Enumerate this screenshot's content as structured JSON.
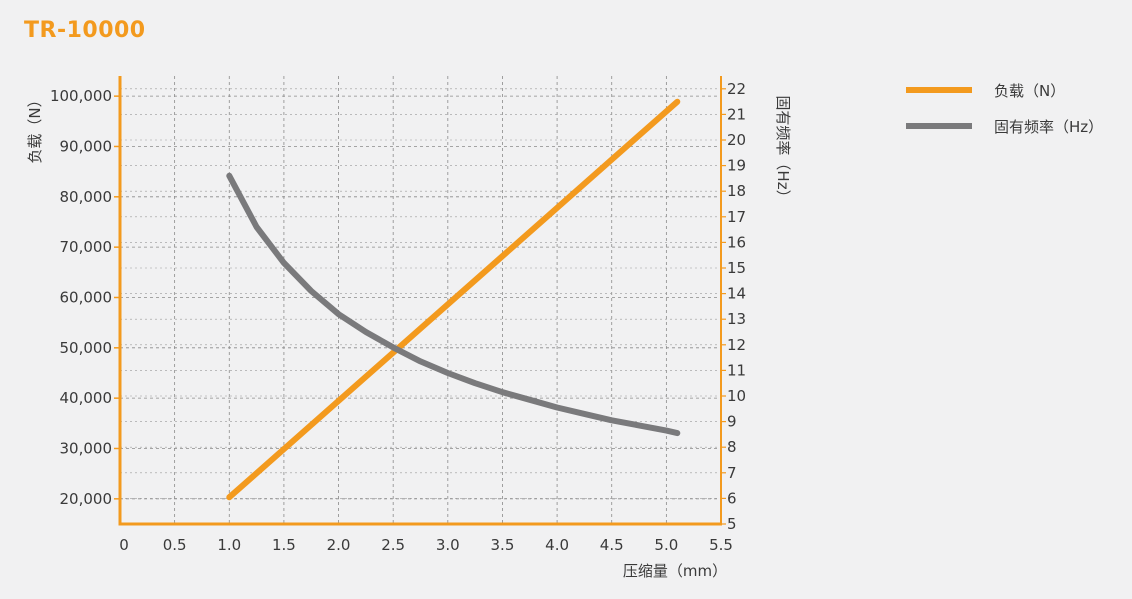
{
  "chart_data": {
    "type": "line",
    "title": "TR-10000",
    "xlabel": "压缩量（mm）",
    "ylabel_left": "负载（N）",
    "ylabel_right": "固有频率（Hz）",
    "xlim": [
      0,
      5.5
    ],
    "ylim_left": [
      15000,
      104000
    ],
    "ylim_right": [
      5,
      22.5
    ],
    "x_ticks": [
      "0",
      "0.5",
      "1.0",
      "1.5",
      "2.0",
      "2.5",
      "3.0",
      "3.5",
      "4.0",
      "4.5",
      "5.0",
      "5.5"
    ],
    "y_left_ticks": [
      "20,000",
      "30,000",
      "40,000",
      "50,000",
      "60,000",
      "70,000",
      "80,000",
      "90,000",
      "100,000"
    ],
    "y_right_ticks": [
      "5",
      "6",
      "7",
      "8",
      "9",
      "10",
      "11",
      "12",
      "13",
      "14",
      "15",
      "16",
      "17",
      "18",
      "19",
      "20",
      "21",
      "22"
    ],
    "grid": true,
    "legend_position": "top-right",
    "series": [
      {
        "name": "负载（N）",
        "axis": "left",
        "color": "#f39a1e",
        "x": [
          1.0,
          5.1
        ],
        "y": [
          20300,
          98900
        ]
      },
      {
        "name": "固有频率（Hz）",
        "axis": "right",
        "color": "#7a7a7c",
        "x": [
          1.0,
          1.25,
          1.5,
          1.75,
          2.0,
          2.25,
          2.5,
          2.75,
          3.0,
          3.25,
          3.5,
          3.75,
          4.0,
          4.25,
          4.5,
          4.75,
          5.0,
          5.1
        ],
        "y": [
          18.6,
          16.6,
          15.2,
          14.1,
          13.2,
          12.5,
          11.9,
          11.35,
          10.9,
          10.5,
          10.15,
          9.85,
          9.55,
          9.3,
          9.05,
          8.85,
          8.65,
          8.55
        ]
      }
    ]
  }
}
